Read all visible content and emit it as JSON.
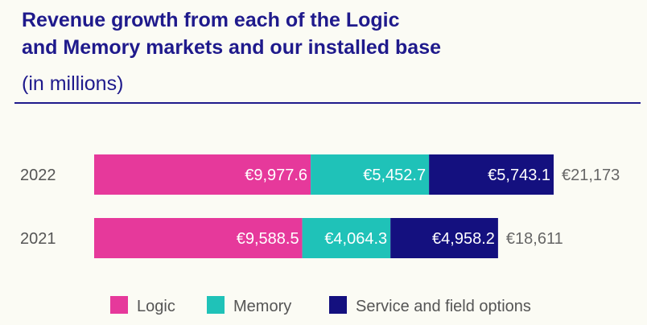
{
  "title_line1": "Revenue growth from each of the Logic",
  "title_line2": "and Memory markets and our installed base",
  "subtitle": "(in millions)",
  "colors": {
    "logic": "#e6399b",
    "memory": "#1fc2b8",
    "service": "#14107f",
    "title": "#1f1a8c"
  },
  "chart_data": {
    "type": "bar",
    "orientation": "horizontal",
    "stacked": true,
    "categories": [
      "2022",
      "2021"
    ],
    "series": [
      {
        "name": "Logic",
        "values": [
          9977.6,
          9588.5
        ],
        "labels": [
          "€9,977.6",
          "€9,588.5"
        ]
      },
      {
        "name": "Memory",
        "values": [
          5452.7,
          4064.3
        ],
        "labels": [
          "€5,452.7",
          "€4,064.3"
        ]
      },
      {
        "name": "Service and field options",
        "values": [
          5743.1,
          4958.2
        ],
        "labels": [
          "€5,743.1",
          "€4,958.2"
        ]
      }
    ],
    "totals": [
      "€21,173",
      "€18,611"
    ],
    "legend_position": "bottom",
    "grid": false
  }
}
